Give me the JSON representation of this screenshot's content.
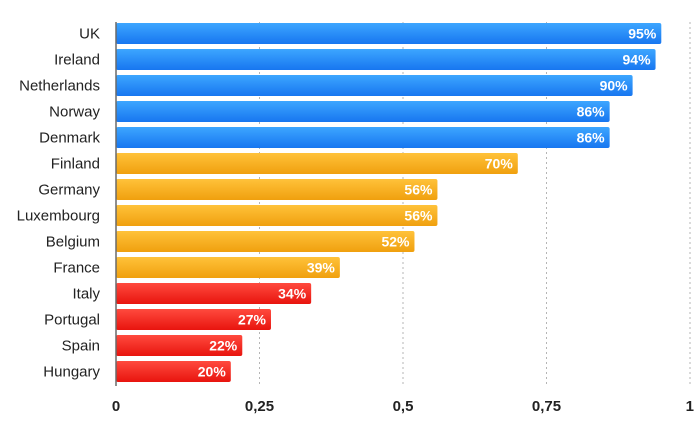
{
  "chart_data": {
    "type": "bar",
    "orientation": "horizontal",
    "title": "",
    "xlabel": "",
    "ylabel": "",
    "xlim": [
      0,
      1
    ],
    "grid": true,
    "legend": "none",
    "categories": [
      "UK",
      "Ireland",
      "Netherlands",
      "Norway",
      "Denmark",
      "Finland",
      "Germany",
      "Luxembourg",
      "Belgium",
      "France",
      "Italy",
      "Portugal",
      "Spain",
      "Hungary"
    ],
    "values": [
      0.95,
      0.94,
      0.9,
      0.86,
      0.86,
      0.7,
      0.56,
      0.56,
      0.52,
      0.39,
      0.34,
      0.27,
      0.22,
      0.2
    ],
    "data_labels": [
      "95%",
      "94%",
      "90%",
      "86%",
      "86%",
      "70%",
      "56%",
      "56%",
      "52%",
      "39%",
      "34%",
      "27%",
      "22%",
      "20%"
    ],
    "groups": [
      "blue",
      "blue",
      "blue",
      "blue",
      "blue",
      "orange",
      "orange",
      "orange",
      "orange",
      "orange",
      "red",
      "red",
      "red",
      "red"
    ],
    "x_ticks": [
      0,
      0.25,
      0.5,
      0.75,
      1
    ],
    "x_tick_labels": [
      "0",
      "0,25",
      "0,5",
      "0,75",
      "1"
    ],
    "colors": {
      "blue": [
        "#3da6ff",
        "#1776f0"
      ],
      "orange": [
        "#ffc23a",
        "#f0a00e"
      ],
      "red": [
        "#ff4a3e",
        "#e8140e"
      ]
    }
  }
}
